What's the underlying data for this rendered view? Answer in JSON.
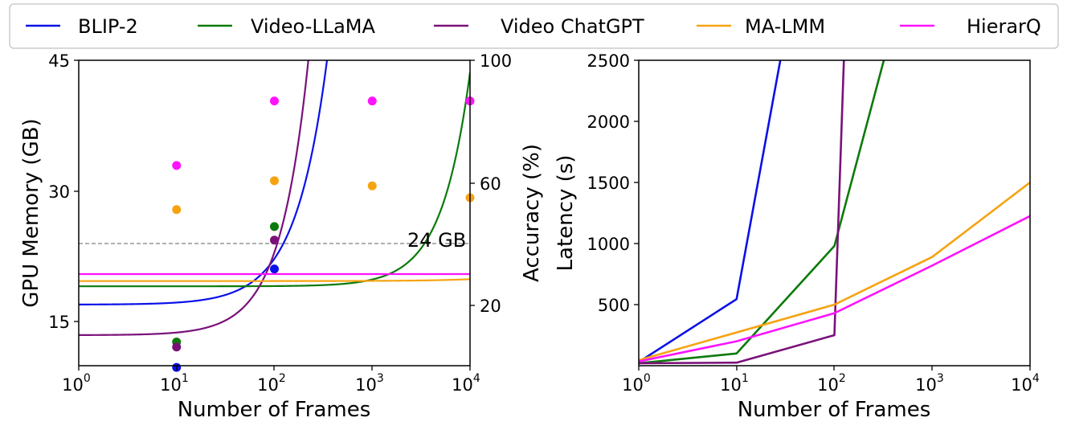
{
  "legend": [
    {
      "name": "BLIP-2",
      "color": "#0a10e8"
    },
    {
      "name": "Video-LLaMA",
      "color": "#0b7a0b"
    },
    {
      "name": "Video ChatGPT",
      "color": "#7a117a"
    },
    {
      "name": "MA-LMM",
      "color": "#f6a312"
    },
    {
      "name": "HierarQ",
      "color": "#ff12ff"
    }
  ],
  "chart_data": [
    {
      "type": "line+scatter",
      "xlabel": "Number of Frames",
      "ylabel_left": "GPU Memory (GB)",
      "ylabel_right": "Accuracy (%)",
      "xscale": "log",
      "xlim": [
        1,
        10000
      ],
      "ylim_left": [
        10,
        45
      ],
      "ylim_right": [
        10,
        100
      ],
      "x_ticks": [
        {
          "base": "10",
          "exp": "0"
        },
        {
          "base": "10",
          "exp": "1"
        },
        {
          "base": "10",
          "exp": "2"
        },
        {
          "base": "10",
          "exp": "3"
        },
        {
          "base": "10",
          "exp": "4"
        }
      ],
      "y_ticks_left": [
        "15",
        "30",
        "45"
      ],
      "y_ticks_right": [
        "20",
        "60",
        "100"
      ],
      "reference_line": {
        "value_gb": 24,
        "label": "24 GB"
      },
      "memory_curves": [
        {
          "name": "BLIP-2",
          "base_gb": 17.0,
          "coef": 0.0105,
          "exp": 1.35
        },
        {
          "name": "Video-LLaMA",
          "base_gb": 19.1,
          "coef": 2.45e-05,
          "exp": 1.5
        },
        {
          "name": "Video ChatGPT",
          "base_gb": 13.5,
          "coef": 0.0095,
          "exp": 1.5
        },
        {
          "name": "MA-LMM",
          "base_gb": 19.7,
          "coef": 2.15e-05,
          "exp": 1.0
        },
        {
          "name": "HierarQ",
          "base_gb": 20.5,
          "coef": 0,
          "exp": 1
        }
      ],
      "accuracy_points": [
        {
          "name": "BLIP-2",
          "points": [
            [
              10,
              9.5
            ],
            [
              100,
              38.5
            ]
          ]
        },
        {
          "name": "Video-LLaMA",
          "points": [
            [
              10,
              17
            ],
            [
              100,
              51
            ]
          ]
        },
        {
          "name": "Video ChatGPT",
          "points": [
            [
              10,
              15.5
            ],
            [
              100,
              47
            ]
          ]
        },
        {
          "name": "MA-LMM",
          "points": [
            [
              10,
              56
            ],
            [
              100,
              64.5
            ],
            [
              1000,
              63
            ],
            [
              10000,
              59.5
            ]
          ]
        },
        {
          "name": "HierarQ",
          "points": [
            [
              10,
              69
            ],
            [
              100,
              88
            ],
            [
              1000,
              88
            ],
            [
              10000,
              88
            ]
          ]
        }
      ]
    },
    {
      "type": "line",
      "xlabel": "Number of Frames",
      "ylabel": "Latency (s)",
      "xscale": "log",
      "xlim": [
        1,
        10000
      ],
      "ylim": [
        0,
        2500
      ],
      "x_ticks": [
        {
          "base": "10",
          "exp": "0"
        },
        {
          "base": "10",
          "exp": "1"
        },
        {
          "base": "10",
          "exp": "2"
        },
        {
          "base": "10",
          "exp": "3"
        },
        {
          "base": "10",
          "exp": "4"
        }
      ],
      "y_ticks": [
        "500",
        "1000",
        "1500",
        "2000",
        "2500"
      ],
      "series": [
        {
          "name": "BLIP-2",
          "x": [
            1,
            10,
            28
          ],
          "y": [
            30,
            545,
            2500
          ]
        },
        {
          "name": "Video-LLaMA",
          "x": [
            1,
            10,
            100,
            320
          ],
          "y": [
            20,
            100,
            980,
            2500
          ]
        },
        {
          "name": "Video ChatGPT",
          "x": [
            1,
            10,
            100,
            125
          ],
          "y": [
            20,
            25,
            250,
            2500
          ]
        },
        {
          "name": "MA-LMM",
          "x": [
            1,
            100,
            1000,
            10000
          ],
          "y": [
            45,
            500,
            890,
            1500
          ]
        },
        {
          "name": "HierarQ",
          "x": [
            1,
            10,
            100,
            1000,
            10000
          ],
          "y": [
            35,
            200,
            430,
            820,
            1225
          ]
        }
      ]
    }
  ]
}
